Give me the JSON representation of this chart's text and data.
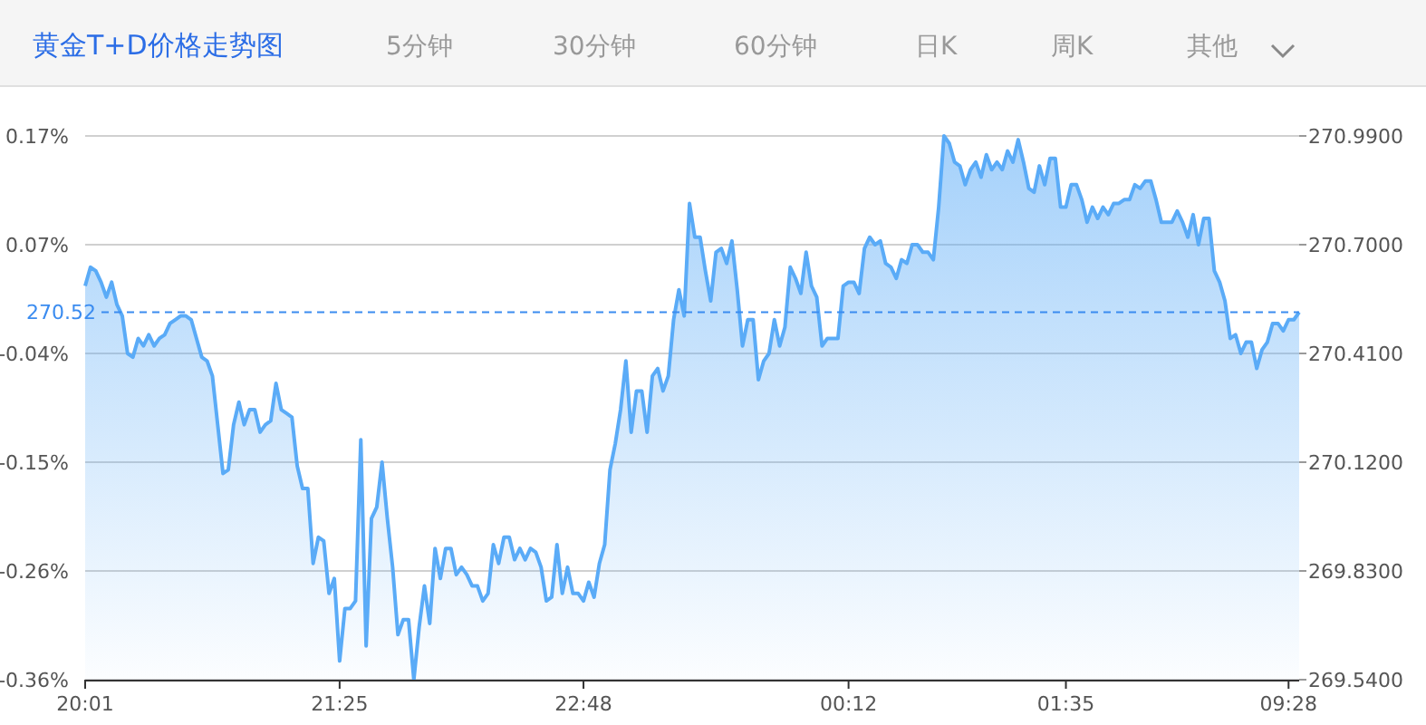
{
  "chart_data": {
    "type": "area",
    "title": "黄金T+D价格走势图",
    "annotations": [
      "5分钟",
      "30分钟",
      "60分钟",
      "日K",
      "周K",
      "其他"
    ],
    "categories": [
      "20:01",
      null,
      null,
      null,
      null,
      null,
      null,
      null,
      null,
      null,
      null,
      null,
      null,
      null,
      null,
      null,
      null,
      null,
      null,
      null,
      null,
      null,
      null,
      null,
      null,
      null,
      null,
      null,
      null,
      null,
      null,
      null,
      null,
      null,
      null,
      null,
      null,
      null,
      null,
      null,
      null,
      null,
      null,
      null,
      null,
      null,
      null,
      null,
      "21:25",
      null,
      null,
      null,
      null,
      null,
      null,
      null,
      null,
      null,
      null,
      null,
      null,
      null,
      null,
      null,
      null,
      null,
      null,
      null,
      null,
      null,
      null,
      null,
      null,
      null,
      null,
      null,
      null,
      null,
      null,
      null,
      null,
      null,
      null,
      null,
      null,
      null,
      null,
      null,
      null,
      null,
      null,
      null,
      null,
      null,
      "22:48",
      null,
      null,
      null,
      null,
      null,
      null,
      null,
      null,
      null,
      null,
      null,
      null,
      null,
      null,
      null,
      null,
      null,
      null,
      null,
      null,
      null,
      null,
      null,
      null,
      null,
      null,
      null,
      null,
      null,
      null,
      null,
      null,
      null,
      null,
      null,
      null,
      null,
      null,
      null,
      null,
      null,
      null,
      null,
      null,
      null,
      null,
      null,
      null,
      null,
      "00:12",
      null,
      null,
      null,
      null,
      null,
      null,
      null,
      null,
      null,
      null,
      null,
      null,
      null,
      null,
      null,
      null,
      null,
      null,
      null,
      null,
      null,
      null,
      null,
      null,
      null,
      null,
      null,
      null,
      null,
      null,
      null,
      null,
      null,
      null,
      null,
      null,
      null,
      null,
      null,
      null,
      "01:35",
      null,
      null,
      null,
      null,
      null,
      null,
      null,
      null,
      null,
      null,
      null,
      null,
      null,
      null,
      null,
      null,
      null,
      null,
      null,
      null,
      null,
      null,
      null,
      null,
      null,
      null,
      null,
      null,
      null,
      null,
      null,
      null,
      null,
      null,
      null,
      null,
      null,
      null,
      null,
      null,
      null,
      "09:28",
      null,
      null
    ],
    "series": [
      {
        "color": "#5aabf7",
        "axis": "y2",
        "values": [
          270.59,
          270.64,
          270.63,
          270.6,
          270.56,
          270.6,
          270.54,
          270.51,
          270.41,
          270.4,
          270.45,
          270.43,
          270.46,
          270.43,
          270.45,
          270.46,
          270.49,
          270.5,
          270.51,
          270.51,
          270.5,
          270.45,
          270.4,
          270.39,
          270.35,
          270.22,
          270.09,
          270.1,
          270.22,
          270.28,
          270.22,
          270.26,
          270.26,
          270.2,
          270.22,
          270.23,
          270.33,
          270.26,
          270.25,
          270.24,
          270.11,
          270.05,
          270.05,
          269.85,
          269.92,
          269.91,
          269.77,
          269.81,
          269.59,
          269.73,
          269.73,
          269.75,
          270.18,
          269.63,
          269.97,
          270.0,
          270.12,
          269.97,
          269.84,
          269.66,
          269.7,
          269.7,
          269.54,
          269.68,
          269.79,
          269.69,
          269.89,
          269.81,
          269.89,
          269.89,
          269.82,
          269.84,
          269.82,
          269.79,
          269.79,
          269.75,
          269.77,
          269.9,
          269.85,
          269.92,
          269.92,
          269.86,
          269.89,
          269.86,
          269.89,
          269.88,
          269.84,
          269.75,
          269.76,
          269.9,
          269.77,
          269.84,
          269.77,
          269.77,
          269.75,
          269.8,
          269.76,
          269.85,
          269.9,
          270.1,
          270.17,
          270.26,
          270.39,
          270.2,
          270.31,
          270.31,
          270.2,
          270.35,
          270.37,
          270.31,
          270.35,
          270.5,
          270.58,
          270.51,
          270.81,
          270.72,
          270.72,
          270.63,
          270.55,
          270.68,
          270.69,
          270.65,
          270.71,
          270.58,
          270.43,
          270.5,
          270.5,
          270.34,
          270.39,
          270.41,
          270.5,
          270.43,
          270.48,
          270.64,
          270.61,
          270.57,
          270.68,
          270.59,
          270.56,
          270.43,
          270.45,
          270.45,
          270.45,
          270.59,
          270.6,
          270.6,
          270.57,
          270.69,
          270.72,
          270.7,
          270.71,
          270.65,
          270.64,
          270.61,
          270.66,
          270.65,
          270.7,
          270.7,
          270.68,
          270.68,
          270.66,
          270.8,
          270.99,
          270.97,
          270.92,
          270.91,
          270.86,
          270.9,
          270.92,
          270.88,
          270.94,
          270.9,
          270.92,
          270.9,
          270.95,
          270.92,
          270.98,
          270.92,
          270.85,
          270.84,
          270.91,
          270.86,
          270.93,
          270.93,
          270.8,
          270.8,
          270.86,
          270.86,
          270.82,
          270.76,
          270.8,
          270.77,
          270.8,
          270.78,
          270.81,
          270.81,
          270.82,
          270.82,
          270.86,
          270.85,
          270.87,
          270.87,
          270.82,
          270.76,
          270.76,
          270.76,
          270.79,
          270.76,
          270.72,
          270.78,
          270.7,
          270.77,
          270.77,
          270.63,
          270.6,
          270.55,
          270.45,
          270.46,
          270.41,
          270.44,
          270.44,
          270.37,
          270.42,
          270.44,
          270.49,
          270.49,
          270.47,
          270.5,
          270.5,
          270.52
        ]
      }
    ],
    "ylim": [
      -0.3623,
      0.1737
    ],
    "yticks": [
      {
        "value": 0.1737,
        "label": "0.17%"
      },
      {
        "value": 0.0665,
        "label": "0.07%"
      },
      {
        "value": -0.0407,
        "label": "-0.04%"
      },
      {
        "value": -0.1479,
        "label": "-0.15%"
      },
      {
        "value": -0.2551,
        "label": "-0.26%"
      },
      {
        "value": -0.3623,
        "label": "-0.36%"
      }
    ],
    "y2lim": [
      269.54,
      270.99
    ],
    "y2ticks": [
      {
        "value": 270.99,
        "label": "270.9900"
      },
      {
        "value": 270.7,
        "label": "270.7000"
      },
      {
        "value": 270.41,
        "label": "270.4100"
      },
      {
        "value": 270.12,
        "label": "270.1200"
      },
      {
        "value": 269.83,
        "label": "269.8300"
      },
      {
        "value": 269.54,
        "label": "269.5400"
      }
    ],
    "ref_lines": [
      {
        "axis": "y2",
        "value": 270.52,
        "label": "270.52",
        "color": "#3b8cf0",
        "line_style": "dashed"
      }
    ],
    "grid": "y"
  }
}
